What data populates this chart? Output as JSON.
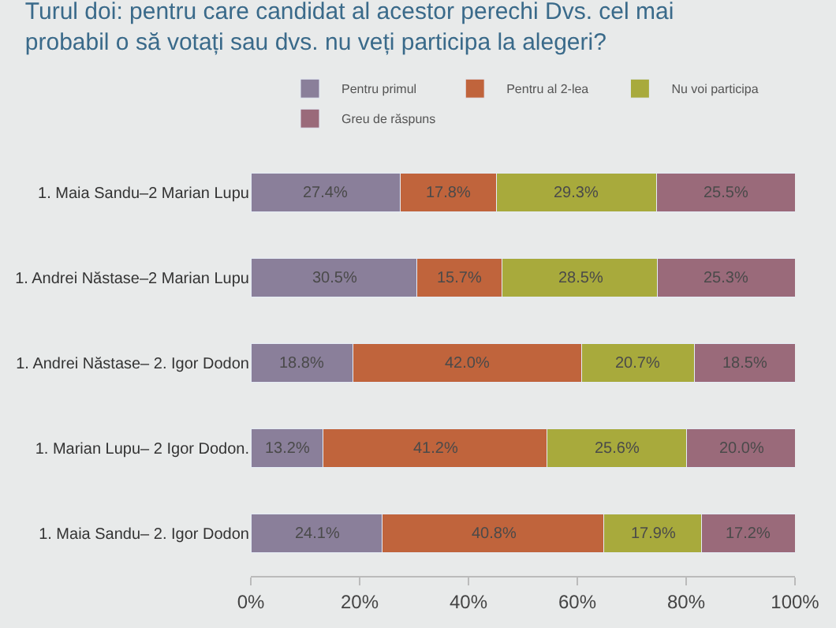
{
  "chart_data": {
    "type": "bar",
    "orientation": "horizontal",
    "stacked": true,
    "title": "Turul doi: pentru care candidat al acestor perechi Dvs. cel mai\nprobabil o să votați sau dvs. nu veți participa la alegeri?",
    "categories": [
      "1. Maia Sandu–2 Marian Lupu",
      "1. Andrei Năstase–2 Marian Lupu",
      "1. Andrei Năstase– 2. Igor Dodon",
      "1. Marian Lupu– 2 Igor Dodon.",
      "1. Maia Sandu– 2. Igor Dodon"
    ],
    "series": [
      {
        "name": "Pentru primul",
        "color": "#8a7f9a",
        "values": [
          27.4,
          30.5,
          18.8,
          13.2,
          24.1
        ],
        "value_labels": [
          "27.4%",
          "30.5%",
          "18.8%",
          "13.2%",
          "24.1%"
        ]
      },
      {
        "name": "Pentru al 2-lea",
        "color": "#c0643c",
        "values": [
          17.8,
          15.7,
          42.0,
          41.2,
          40.8
        ],
        "value_labels": [
          "17.8%",
          "15.7%",
          "42.0%",
          "41.2%",
          "40.8%"
        ]
      },
      {
        "name": "Nu voi participa",
        "color": "#a8aa3c",
        "values": [
          29.3,
          28.5,
          20.7,
          25.6,
          17.9
        ],
        "value_labels": [
          "29.3%",
          "28.5%",
          "20.7%",
          "25.6%",
          "17.9%"
        ]
      },
      {
        "name": "Greu de răspuns",
        "color": "#9a6a7a",
        "values": [
          25.5,
          25.3,
          18.5,
          20.0,
          17.2
        ],
        "value_labels": [
          "25.5%",
          "25.3%",
          "18.5%",
          "20.0%",
          "17.2%"
        ]
      }
    ],
    "xlim": [
      0,
      100
    ],
    "xticks": [
      {
        "value": 0,
        "label": "0%"
      },
      {
        "value": 20,
        "label": "20%"
      },
      {
        "value": 40,
        "label": "40%"
      },
      {
        "value": 60,
        "label": "60%"
      },
      {
        "value": 80,
        "label": "80%"
      },
      {
        "value": 100,
        "label": "100%"
      }
    ],
    "legend": "top",
    "grid": false
  }
}
